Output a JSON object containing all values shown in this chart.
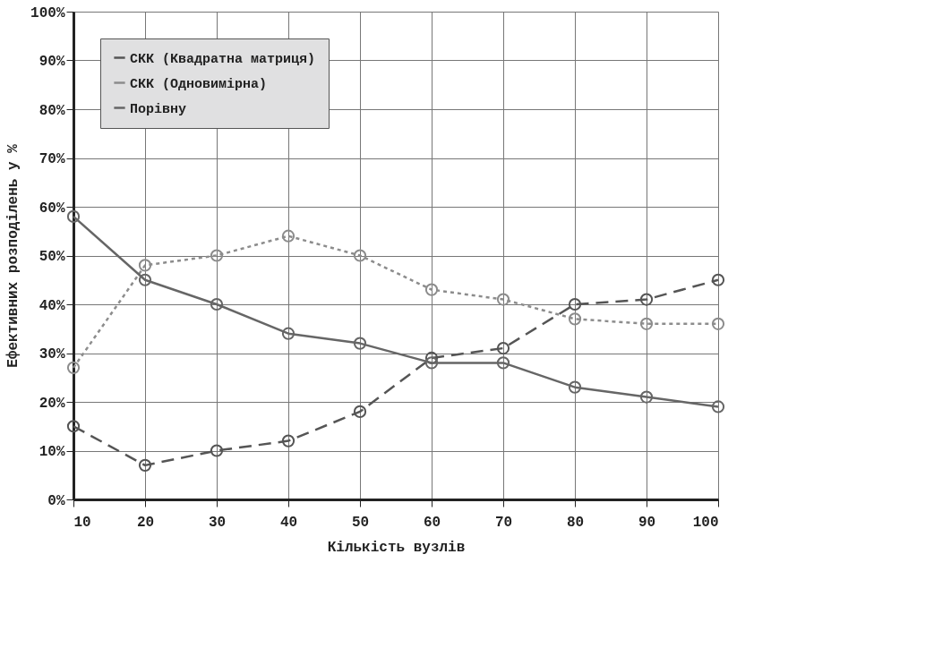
{
  "chart_data": {
    "type": "line",
    "xlabel": "Кількість вузлів",
    "ylabel": "Ефективних розподілень у %",
    "x": [
      10,
      20,
      30,
      40,
      50,
      60,
      70,
      80,
      90,
      100
    ],
    "series": [
      {
        "name": "СКК (Квадратна матриця)",
        "color": "#555555",
        "line_style": "dashed",
        "values": [
          15,
          7,
          10,
          12,
          18,
          29,
          31,
          40,
          41,
          45
        ]
      },
      {
        "name": "СКК (Одновимірна)",
        "color": "#8c8c8c",
        "line_style": "dotted",
        "values": [
          27,
          48,
          50,
          54,
          50,
          43,
          41,
          37,
          36,
          36
        ]
      },
      {
        "name": "Порівну",
        "color": "#666666",
        "line_style": "solid",
        "values": [
          58,
          45,
          40,
          34,
          32,
          28,
          28,
          23,
          21,
          19
        ]
      }
    ],
    "xlim": [
      10,
      100
    ],
    "xticks": [
      10,
      20,
      30,
      40,
      50,
      60,
      70,
      80,
      90,
      100
    ],
    "ylim": [
      0,
      100
    ],
    "yticks": [
      {
        "value": 0,
        "label": "0%"
      },
      {
        "value": 10,
        "label": "10%"
      },
      {
        "value": 20,
        "label": "20%"
      },
      {
        "value": 30,
        "label": "30%"
      },
      {
        "value": 40,
        "label": "40%"
      },
      {
        "value": 50,
        "label": "50%"
      },
      {
        "value": 60,
        "label": "60%"
      },
      {
        "value": 70,
        "label": "70%"
      },
      {
        "value": 80,
        "label": "80%"
      },
      {
        "value": 90,
        "label": "90%"
      },
      {
        "value": 100,
        "label": "100%"
      }
    ],
    "grid": true,
    "legend": "top left",
    "marker": "circle"
  }
}
